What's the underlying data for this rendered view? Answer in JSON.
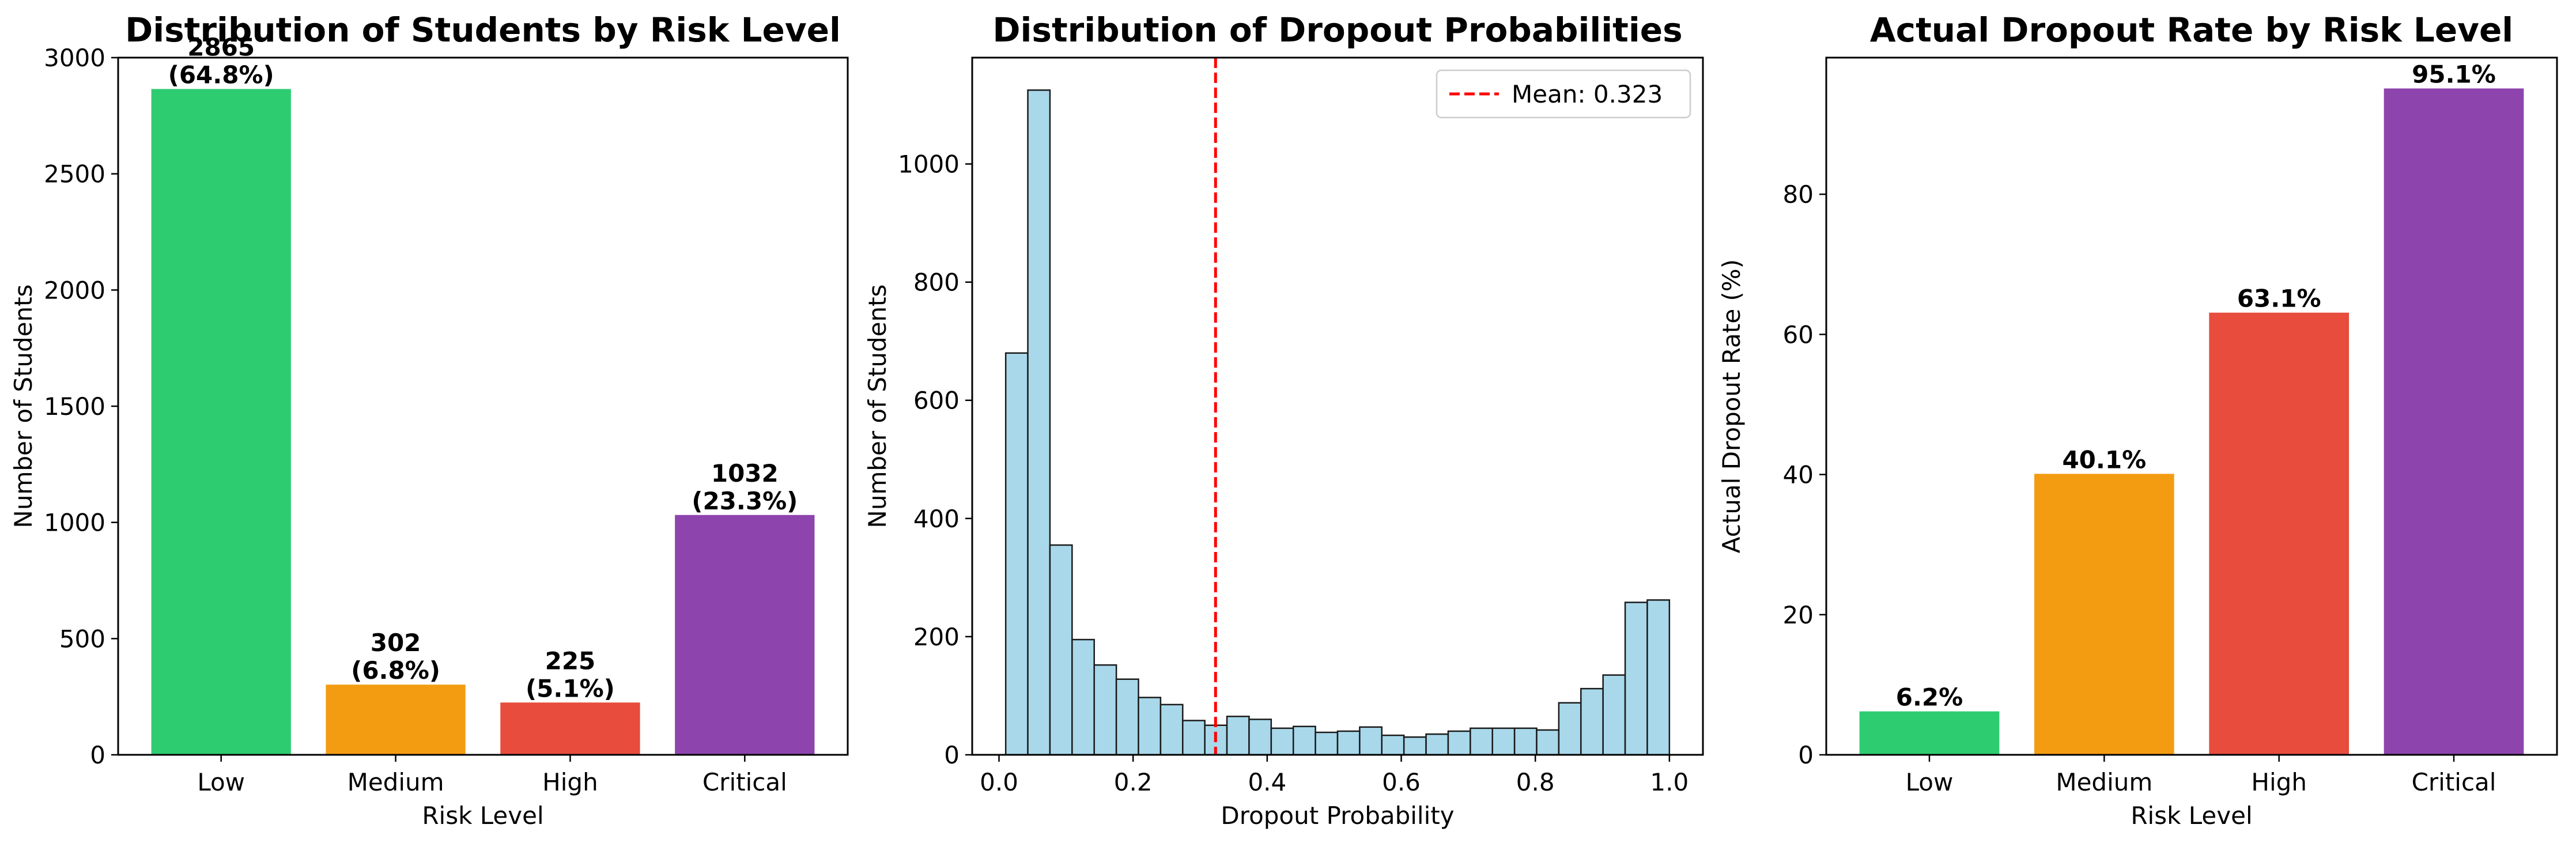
{
  "chart_data": [
    {
      "type": "bar",
      "title": "Distribution of Students by Risk Level",
      "xlabel": "Risk Level",
      "ylabel": "Number of Students",
      "categories": [
        "Low",
        "Medium",
        "High",
        "Critical"
      ],
      "values": [
        2865,
        302,
        225,
        1032
      ],
      "bar_labels": [
        [
          "2865",
          "(64.8%)"
        ],
        [
          "302",
          "(6.8%)"
        ],
        [
          "225",
          "(5.1%)"
        ],
        [
          "1032",
          "(23.3%)"
        ]
      ],
      "colors": [
        "#2ecc71",
        "#f39c12",
        "#e74c3c",
        "#8e44ad"
      ],
      "ylim": [
        0,
        3000
      ],
      "yticks": [
        0,
        500,
        1000,
        1500,
        2000,
        2500,
        3000
      ],
      "grid": false
    },
    {
      "type": "histogram",
      "title": "Distribution of Dropout Probabilities",
      "xlabel": "Dropout Probability",
      "ylabel": "Number of Students",
      "bin_range": [
        0.01,
        1.0
      ],
      "counts": [
        680,
        1125,
        355,
        195,
        152,
        128,
        97,
        85,
        58,
        50,
        65,
        60,
        45,
        48,
        38,
        40,
        47,
        33,
        30,
        35,
        40,
        45,
        45,
        45,
        42,
        88,
        112,
        135,
        258,
        262
      ],
      "bar_color": "#a8d8ea",
      "edge_color": "#1a1a1a",
      "xlim": [
        -0.04,
        1.05
      ],
      "ylim": [
        0,
        1180
      ],
      "xticks": [
        0.0,
        0.2,
        0.4,
        0.6,
        0.8,
        1.0
      ],
      "yticks": [
        0,
        200,
        400,
        600,
        800,
        1000
      ],
      "mean_line": {
        "value": 0.323,
        "color": "#ff0000"
      },
      "legend": {
        "label": "Mean: 0.323",
        "position": "top-right"
      },
      "grid": false
    },
    {
      "type": "bar",
      "title": "Actual Dropout Rate by Risk Level",
      "xlabel": "Risk Level",
      "ylabel": "Actual Dropout Rate (%)",
      "categories": [
        "Low",
        "Medium",
        "High",
        "Critical"
      ],
      "values": [
        6.2,
        40.1,
        63.1,
        95.1
      ],
      "bar_labels": [
        [
          "6.2%"
        ],
        [
          "40.1%"
        ],
        [
          "63.1%"
        ],
        [
          "95.1%"
        ]
      ],
      "colors": [
        "#2ecc71",
        "#f39c12",
        "#e74c3c",
        "#8e44ad"
      ],
      "ylim": [
        0,
        99.5
      ],
      "yticks": [
        0,
        20,
        40,
        60,
        80
      ],
      "grid": false
    }
  ]
}
